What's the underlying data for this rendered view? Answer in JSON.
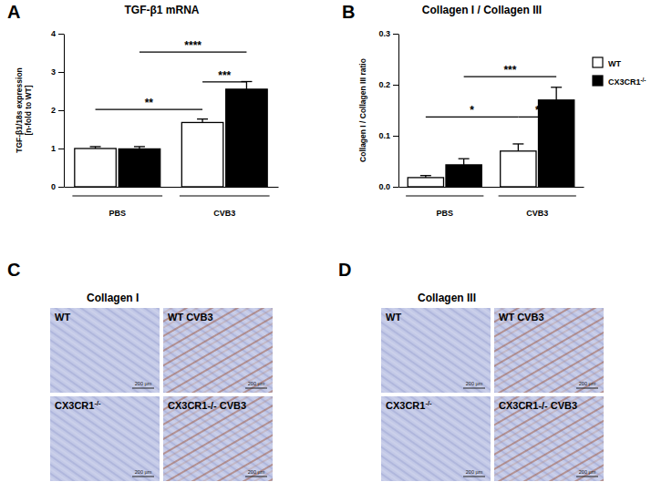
{
  "chart_data": [
    {
      "type": "bar",
      "panel": "A",
      "title": "TGF-β1 mRNA",
      "y_label": [
        "TGF-β1/18s expression",
        "[n-fold to WT]"
      ],
      "categories": [
        "PBS",
        "CVB3"
      ],
      "series": [
        {
          "name": "WT",
          "color": "#ffffff",
          "values": [
            1.0,
            1.68
          ],
          "errors": [
            0.05,
            0.09
          ]
        },
        {
          "name": "CX3CR1-/-",
          "color": "#000000",
          "values": [
            0.99,
            2.55
          ],
          "errors": [
            0.06,
            0.2
          ]
        }
      ],
      "ylim": [
        0,
        4
      ],
      "yticks": [
        0,
        1,
        2,
        3,
        4
      ],
      "annotations": [
        {
          "text": "**",
          "from": [
            0,
            0
          ],
          "to": [
            0,
            1
          ],
          "y": 2.02
        },
        {
          "text": "****",
          "from": [
            1,
            0
          ],
          "to": [
            1,
            1
          ],
          "y": 3.52
        },
        {
          "text": "***",
          "from": [
            0,
            1
          ],
          "to": [
            1,
            1
          ],
          "y": 2.74
        }
      ]
    },
    {
      "type": "bar",
      "panel": "B",
      "title": "Collagen I / Collagen III",
      "y_label": [
        "Collagen I / Collagen III ratio"
      ],
      "categories": [
        "PBS",
        "CVB3"
      ],
      "series": [
        {
          "name": "WT",
          "color": "#ffffff",
          "values": [
            0.018,
            0.07
          ],
          "errors": [
            0.004,
            0.014
          ]
        },
        {
          "name": "CX3CR1-/-",
          "color": "#000000",
          "values": [
            0.043,
            0.17
          ],
          "errors": [
            0.012,
            0.025
          ]
        }
      ],
      "ylim": [
        0,
        0.3
      ],
      "yticks": [
        {
          "value": 0,
          "label": "0.0"
        },
        {
          "value": 0.1,
          "label": "0.1"
        },
        {
          "value": 0.2,
          "label": "0.2"
        },
        {
          "value": 0.3,
          "label": "0.3"
        }
      ],
      "legend": "right",
      "annotations": [
        {
          "text": "*",
          "from": [
            0,
            0
          ],
          "to": [
            0,
            1
          ],
          "y": 0.137
        },
        {
          "text": "***",
          "from": [
            1,
            0
          ],
          "to": [
            1,
            1
          ],
          "y": 0.216
        },
        {
          "text": "*",
          "from": [
            0,
            1
          ],
          "to": [
            1,
            1
          ],
          "y": 0.137
        }
      ]
    }
  ],
  "image_panels": [
    {
      "panel": "C",
      "title": "Collagen I",
      "images": [
        {
          "label": "WT",
          "scale_bar": "200 µm"
        },
        {
          "label": "WT CVB3",
          "scale_bar": "200 µm"
        },
        {
          "label": "CX3CR1-/-",
          "scale_bar": "200 µm"
        },
        {
          "label": "CX3CR1-/- CVB3",
          "scale_bar": "200 µm"
        }
      ]
    },
    {
      "panel": "D",
      "title": "Collagen III",
      "images": [
        {
          "label": "WT",
          "scale_bar": "200 µm"
        },
        {
          "label": "WT CVB3",
          "scale_bar": "200 µm"
        },
        {
          "label": "CX3CR1-/-",
          "scale_bar": "200 µm"
        },
        {
          "label": "CX3CR1-/- CVB3",
          "scale_bar": "200 µm"
        }
      ]
    }
  ]
}
